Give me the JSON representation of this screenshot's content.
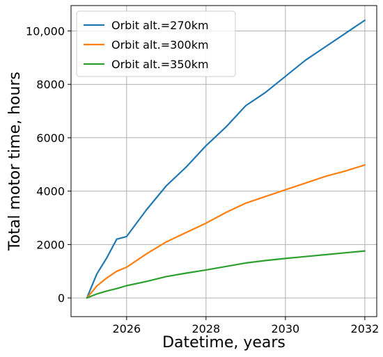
{
  "chart_data": {
    "type": "line",
    "xlabel": "Datetime, years",
    "ylabel": "Total motor time, hours",
    "xlim": [
      2024.6,
      2032.3
    ],
    "ylim": [
      -700,
      10950
    ],
    "x_ticks": [
      2026,
      2028,
      2030,
      2032
    ],
    "x_tick_labels": [
      "2026",
      "2028",
      "2030",
      "2032"
    ],
    "y_ticks": [
      0,
      2000,
      4000,
      6000,
      8000,
      10000
    ],
    "y_tick_labels": [
      "0",
      "2000",
      "4000",
      "6000",
      "8000",
      "10,000"
    ],
    "grid": true,
    "legend_position": "top-left",
    "series": [
      {
        "name": "Orbit alt.=270km",
        "color": "#1f77b4",
        "x": [
          2025.0,
          2025.25,
          2025.5,
          2025.75,
          2026.0,
          2026.5,
          2027.0,
          2027.5,
          2028.0,
          2028.5,
          2029.0,
          2029.5,
          2030.0,
          2030.5,
          2031.0,
          2031.5,
          2032.0
        ],
        "y": [
          0,
          900,
          1500,
          2200,
          2300,
          3300,
          4200,
          4900,
          5700,
          6400,
          7200,
          7700,
          8300,
          8900,
          9400,
          9900,
          10400
        ]
      },
      {
        "name": "Orbit alt.=300km",
        "color": "#ff7f0e",
        "x": [
          2025.0,
          2025.25,
          2025.5,
          2025.75,
          2026.0,
          2026.5,
          2027.0,
          2027.5,
          2028.0,
          2028.5,
          2029.0,
          2029.5,
          2030.0,
          2030.5,
          2031.0,
          2031.5,
          2032.0
        ],
        "y": [
          0,
          450,
          750,
          1000,
          1150,
          1650,
          2100,
          2450,
          2800,
          3200,
          3550,
          3800,
          4050,
          4300,
          4550,
          4750,
          4980
        ]
      },
      {
        "name": "Orbit alt.=350km",
        "color": "#2ca02c",
        "x": [
          2025.0,
          2025.25,
          2025.5,
          2025.75,
          2026.0,
          2026.5,
          2027.0,
          2027.5,
          2028.0,
          2028.5,
          2029.0,
          2029.5,
          2030.0,
          2030.5,
          2031.0,
          2031.5,
          2032.0
        ],
        "y": [
          0,
          150,
          260,
          350,
          460,
          620,
          800,
          930,
          1050,
          1180,
          1310,
          1400,
          1480,
          1550,
          1620,
          1690,
          1760
        ]
      }
    ]
  }
}
